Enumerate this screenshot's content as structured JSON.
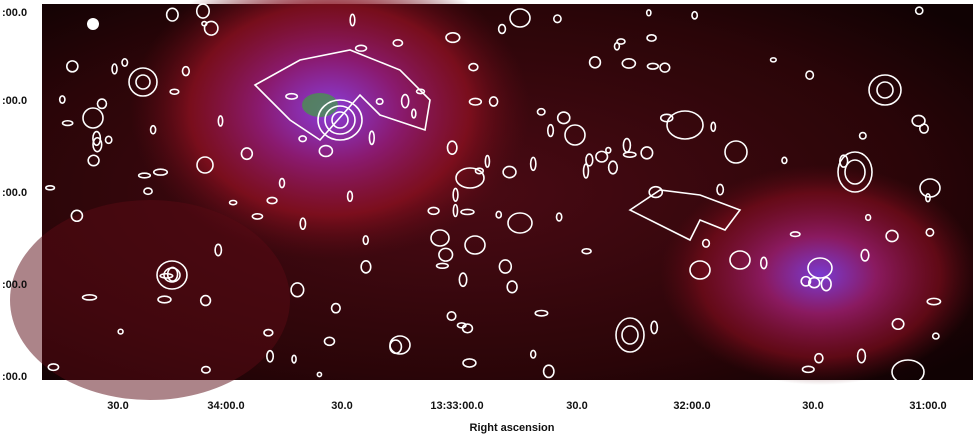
{
  "axes": {
    "x_label": "Right ascension",
    "x_ticks": [
      "30.0",
      "34:00.0",
      "30.0",
      "13:33:00.0",
      "30.0",
      "32:00.0",
      "30.0",
      "31:00.0"
    ],
    "y_ticks": [
      ":00.0",
      ":00.0",
      ":00.0",
      ":00.0",
      ":00.0"
    ]
  }
}
